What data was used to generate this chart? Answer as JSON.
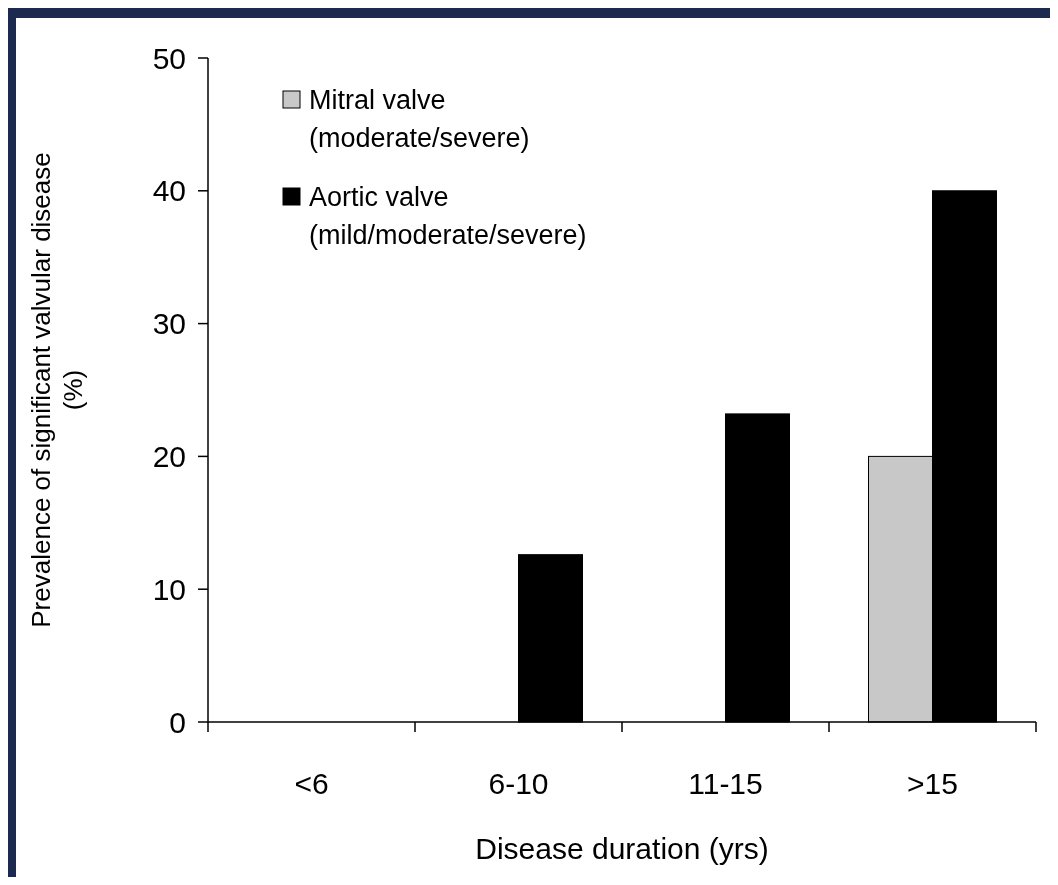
{
  "chart_data": {
    "type": "bar",
    "xlabel": "Disease duration (yrs)",
    "ylabel": "Prevalence of significant valvular disease (%)",
    "categories": [
      "<6",
      "6-10",
      "11-15",
      ">15"
    ],
    "series": [
      {
        "name": "Mitral valve (moderate/severe)",
        "color": "#c8c8c8",
        "values": [
          0,
          0,
          0,
          20
        ]
      },
      {
        "name": "Aortic valve (mild/moderate/severe)",
        "color": "#000000",
        "values": [
          0,
          12.6,
          23.2,
          40
        ]
      }
    ],
    "ylim": [
      0,
      50
    ],
    "yticks": [
      0,
      10,
      20,
      30,
      40,
      50
    ],
    "grid": false,
    "legend": "top left"
  }
}
